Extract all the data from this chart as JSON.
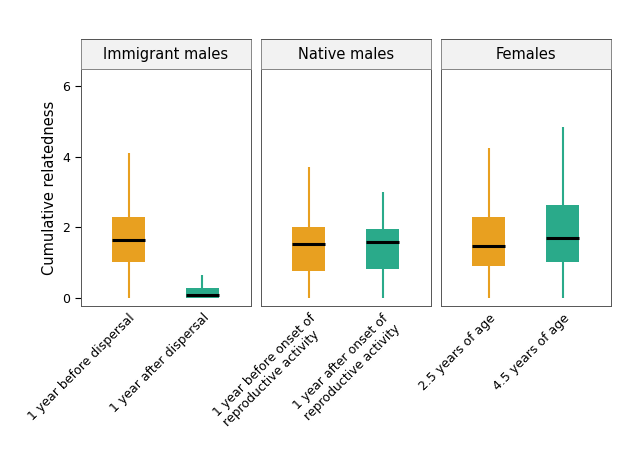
{
  "panels": [
    {
      "title": "Immigrant males",
      "boxes": [
        {
          "label": "1 year before dispersal",
          "color": "#E8A020",
          "median": 1.65,
          "q1": 1.0,
          "q3": 2.3,
          "whislo": 0.0,
          "whishi": 4.1
        },
        {
          "label": "1 year after dispersal",
          "color": "#2AAA8A",
          "median": 0.08,
          "q1": 0.0,
          "q3": 0.28,
          "whislo": 0.0,
          "whishi": 0.65
        }
      ]
    },
    {
      "title": "Native males",
      "boxes": [
        {
          "label": "1 year before onset of\nreproductive activity",
          "color": "#E8A020",
          "median": 1.52,
          "q1": 0.75,
          "q3": 2.0,
          "whislo": 0.0,
          "whishi": 3.7
        },
        {
          "label": "1 year after onset of\nreproductive activity",
          "color": "#2AAA8A",
          "median": 1.58,
          "q1": 0.8,
          "q3": 1.95,
          "whislo": 0.0,
          "whishi": 3.0
        }
      ]
    },
    {
      "title": "Females",
      "boxes": [
        {
          "label": "2.5 years of age",
          "color": "#E8A020",
          "median": 1.48,
          "q1": 0.9,
          "q3": 2.3,
          "whislo": 0.0,
          "whishi": 4.25
        },
        {
          "label": "4.5 years of age",
          "color": "#2AAA8A",
          "median": 1.68,
          "q1": 1.0,
          "q3": 2.62,
          "whislo": 0.0,
          "whishi": 4.85
        }
      ]
    }
  ],
  "ylabel": "Cumulative relatedness",
  "ylim": [
    -0.25,
    6.5
  ],
  "yticks": [
    0,
    2,
    4,
    6
  ],
  "background_color": "#ffffff",
  "box_width": 0.45,
  "panel_title_fontsize": 10.5,
  "axis_label_fontsize": 10.5,
  "tick_label_fontsize": 9,
  "facet_bg": "#f2f2f2",
  "facet_border": "#aaaaaa"
}
